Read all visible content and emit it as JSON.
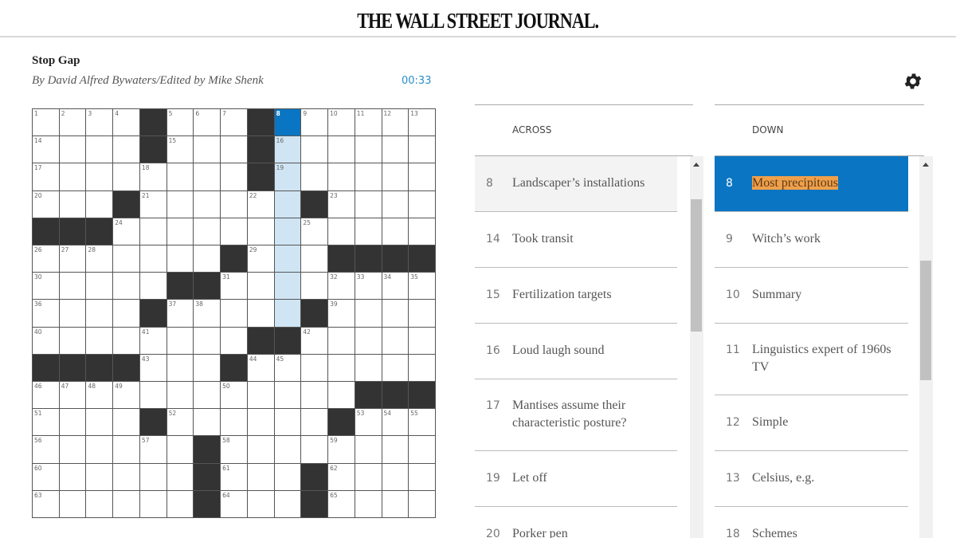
{
  "header": {
    "logo": "THE WALL STREET JOURNAL."
  },
  "puzzle": {
    "title": "Stop Gap",
    "byline": "By David Alfred Bywaters/Edited by Mike Shenk",
    "timer": "00:33"
  },
  "grid": {
    "rows": [
      "....#...#......",
      "....#...#......",
      "........#......",
      "...#......#....",
      "###............",
      ".......#...####",
      ".....##........",
      "....#.....#....",
      "........##.....",
      "####...#.......",
      "............###",
      "....#......#...",
      "......#........",
      "......#...#....",
      "......#...#...."
    ],
    "active_cell_number": 8,
    "direction": "down",
    "colors": {
      "active": "#0a75c2",
      "highlight": "#cfe5f3",
      "block": "#333333"
    }
  },
  "icons": {
    "settings": "gear-icon"
  },
  "across": {
    "label": "ACROSS",
    "clues": [
      {
        "num": "8",
        "text": "Landscaper’s installations",
        "selected": true
      },
      {
        "num": "14",
        "text": "Took transit"
      },
      {
        "num": "15",
        "text": "Fertilization targets"
      },
      {
        "num": "16",
        "text": "Loud laugh sound"
      },
      {
        "num": "17",
        "text": "Mantises assume their characteristic posture?",
        "lines": 2
      },
      {
        "num": "19",
        "text": "Let off"
      },
      {
        "num": "20",
        "text": "Porker pen"
      }
    ]
  },
  "down": {
    "label": "DOWN",
    "clues": [
      {
        "num": "8",
        "text": "Most precipitous",
        "selected": true
      },
      {
        "num": "9",
        "text": "Witch’s work"
      },
      {
        "num": "10",
        "text": "Summary"
      },
      {
        "num": "11",
        "text": "Linguistics expert of 1960s TV",
        "lines": 2
      },
      {
        "num": "12",
        "text": "Simple"
      },
      {
        "num": "13",
        "text": "Celsius, e.g."
      },
      {
        "num": "18",
        "text": "Schemes"
      }
    ]
  }
}
